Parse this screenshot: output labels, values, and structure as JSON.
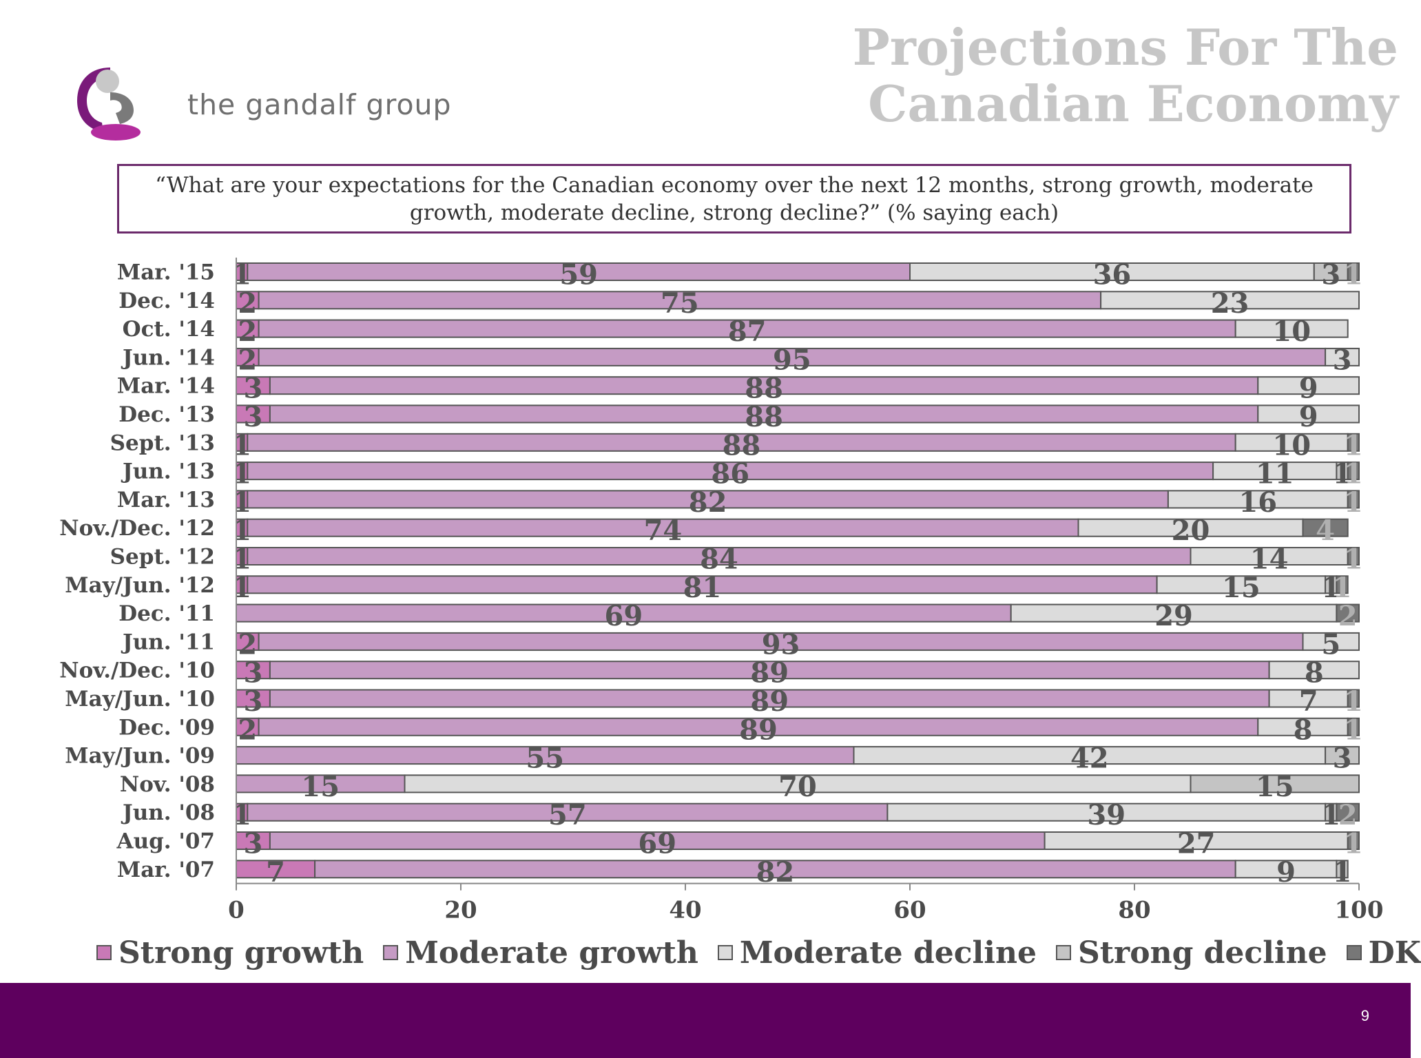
{
  "brand": {
    "name": "the gandalf group",
    "logo_icon": "gandalf-g-logo-icon",
    "colors": {
      "purple": "#7a1a7a",
      "gray": "#9a9a9a"
    }
  },
  "page": {
    "title": "Projections For The Canadian Economy",
    "question": "“What are your expectations for the Canadian economy over the next 12 months, strong growth, moderate growth, moderate decline, strong decline?” (% saying each)",
    "page_number": "9"
  },
  "colors": {
    "strong_growth": "#c979b6",
    "moderate_growth": "#c59bc4",
    "moderate_decline": "#dcdcdc",
    "strong_decline": "#c4c4c4",
    "dk": "#777777",
    "footer": "#5e005e"
  },
  "chart_data": {
    "type": "bar",
    "orientation": "horizontal",
    "stacked": true,
    "categories": [
      "Mar. '15",
      "Dec. '14",
      "Oct. '14",
      "Jun. '14",
      "Mar. '14",
      "Dec. '13",
      "Sept. '13",
      "Jun. '13",
      "Mar. '13",
      "Nov./Dec. '12",
      "Sept. '12",
      "May/Jun. '12",
      "Dec. '11",
      "Jun. '11",
      "Nov./Dec. '10",
      "May/Jun. '10",
      "Dec. '09",
      "May/Jun. '09",
      "Nov. '08",
      "Jun. '08",
      "Aug. '07",
      "Mar. '07"
    ],
    "series": [
      {
        "name": "Strong growth",
        "values": [
          1,
          2,
          2,
          2,
          3,
          3,
          1,
          1,
          1,
          1,
          1,
          1,
          null,
          2,
          3,
          3,
          2,
          null,
          null,
          1,
          3,
          7
        ]
      },
      {
        "name": "Moderate growth",
        "values": [
          59,
          75,
          87,
          95,
          88,
          88,
          88,
          86,
          82,
          74,
          84,
          81,
          69,
          93,
          89,
          89,
          89,
          55,
          15,
          57,
          69,
          82
        ]
      },
      {
        "name": "Moderate decline",
        "values": [
          36,
          23,
          10,
          3,
          9,
          9,
          10,
          11,
          16,
          20,
          14,
          15,
          29,
          5,
          8,
          7,
          8,
          42,
          70,
          39,
          27,
          9
        ]
      },
      {
        "name": "Strong decline",
        "values": [
          3,
          null,
          null,
          null,
          null,
          null,
          null,
          1,
          null,
          null,
          null,
          1,
          null,
          null,
          null,
          null,
          null,
          3,
          15,
          1,
          null,
          1
        ]
      },
      {
        "name": "DK",
        "values": [
          1,
          null,
          null,
          null,
          null,
          null,
          1,
          1,
          1,
          4,
          1,
          1,
          2,
          null,
          null,
          1,
          1,
          null,
          null,
          2,
          1,
          null
        ]
      }
    ],
    "xlim": [
      0,
      100
    ],
    "xticks": [
      "0",
      "20",
      "40",
      "60",
      "80",
      "100"
    ],
    "xlabel": "",
    "ylabel": "",
    "grid": false,
    "legend_position": "bottom"
  }
}
